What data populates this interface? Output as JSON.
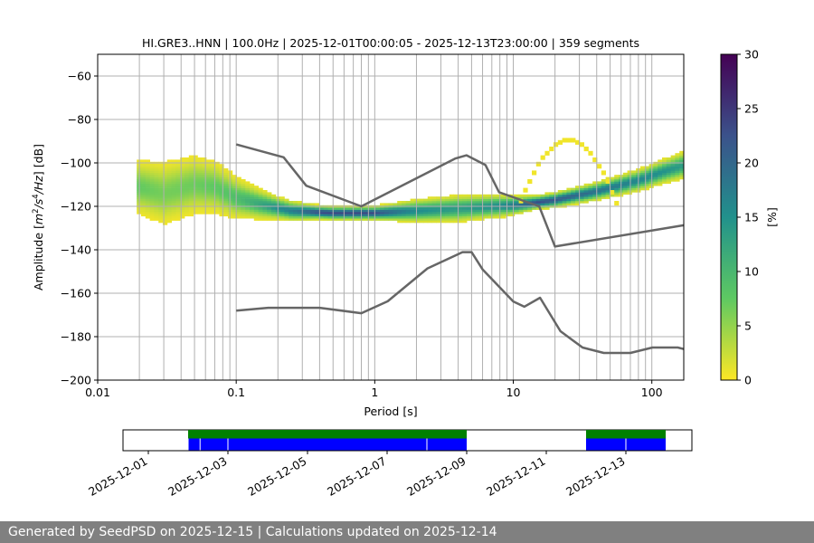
{
  "chart_data": [
    {
      "type": "heatmap",
      "title": "HI.GRE3..HNN | 100.0Hz | 2025-12-01T00:00:05 - 2025-12-13T23:00:00 | 359 segments",
      "xlabel": "Period [s]",
      "ylabel_parts": [
        "Amplitude [",
        "m",
        "2",
        "/",
        "s",
        "4",
        "/",
        "Hz",
        "] [dB]"
      ],
      "x_scale": "log",
      "xlim": [
        0.01,
        170
      ],
      "ylim": [
        -200,
        -50
      ],
      "grid": "vertical period gridlines and horizontal dB gridlines",
      "x_ticks": [
        {
          "value": 0.01,
          "label": "0.01"
        },
        {
          "value": 0.1,
          "label": "0.1"
        },
        {
          "value": 1,
          "label": "1"
        },
        {
          "value": 10,
          "label": "10"
        },
        {
          "value": 100,
          "label": "100"
        }
      ],
      "y_ticks": [
        {
          "value": -60,
          "label": "−60"
        },
        {
          "value": -80,
          "label": "−80"
        },
        {
          "value": -100,
          "label": "−100"
        },
        {
          "value": -120,
          "label": "−120"
        },
        {
          "value": -140,
          "label": "−140"
        },
        {
          "value": -160,
          "label": "−160"
        },
        {
          "value": -180,
          "label": "−180"
        },
        {
          "value": -200,
          "label": "−200"
        }
      ],
      "psd_mode": [
        [
          0.02,
          -111
        ],
        [
          0.03,
          -114
        ],
        [
          0.05,
          -110
        ],
        [
          0.07,
          -111
        ],
        [
          0.1,
          -116
        ],
        [
          0.15,
          -119
        ],
        [
          0.25,
          -122
        ],
        [
          0.5,
          -123
        ],
        [
          1,
          -123
        ],
        [
          2,
          -122
        ],
        [
          4,
          -121
        ],
        [
          7,
          -120
        ],
        [
          10,
          -119.5
        ],
        [
          20,
          -117
        ],
        [
          40,
          -113
        ],
        [
          80,
          -108
        ],
        [
          120,
          -104
        ],
        [
          170,
          -101
        ]
      ],
      "psd_spread": [
        [
          0.02,
          12
        ],
        [
          0.03,
          14
        ],
        [
          0.05,
          13
        ],
        [
          0.08,
          11
        ],
        [
          0.12,
          8
        ],
        [
          0.2,
          5
        ],
        [
          0.4,
          3
        ],
        [
          1,
          3
        ],
        [
          2,
          5
        ],
        [
          4,
          6
        ],
        [
          8,
          5
        ],
        [
          15,
          3
        ],
        [
          40,
          4
        ],
        [
          100,
          5
        ],
        [
          170,
          6
        ]
      ],
      "secondary_peak": {
        "center_period": 25,
        "min_db": -89,
        "description": "faint swell/secondary band"
      },
      "noise_model_high": [
        [
          0.1,
          -91.5
        ],
        [
          0.22,
          -97.4
        ],
        [
          0.32,
          -110.5
        ],
        [
          0.8,
          -120
        ],
        [
          3.8,
          -98
        ],
        [
          4.6,
          -96.5
        ],
        [
          6.3,
          -101
        ],
        [
          7.9,
          -113.5
        ],
        [
          15.4,
          -120
        ],
        [
          20,
          -138.5
        ],
        [
          170,
          -128.7
        ]
      ],
      "noise_model_low": [
        [
          0.1,
          -168
        ],
        [
          0.17,
          -166.7
        ],
        [
          0.4,
          -166.7
        ],
        [
          0.8,
          -169.2
        ],
        [
          1.24,
          -163.7
        ],
        [
          2.4,
          -148.6
        ],
        [
          4.3,
          -141.1
        ],
        [
          5.0,
          -141.1
        ],
        [
          6.0,
          -149
        ],
        [
          10,
          -163.8
        ],
        [
          12,
          -166.2
        ],
        [
          15.6,
          -162.1
        ],
        [
          21.9,
          -177.5
        ],
        [
          31.6,
          -185
        ],
        [
          45,
          -187.5
        ],
        [
          70,
          -187.5
        ],
        [
          101,
          -185
        ],
        [
          154,
          -185
        ],
        [
          170,
          -185.7
        ]
      ],
      "colorbar": {
        "label": "[%]",
        "range": [
          0,
          30
        ],
        "ticks": [
          "0",
          "5",
          "10",
          "15",
          "20",
          "25",
          "30"
        ],
        "colormap": "viridis reversed",
        "colors": [
          "#fde725",
          "#5ec962",
          "#21918c",
          "#3b528b",
          "#440154"
        ]
      },
      "colors": {
        "noise_model": "#666666",
        "grid": "#b0b0b0"
      }
    },
    {
      "type": "timeline",
      "date_ticks": [
        "2025-12-01",
        "2025-12-03",
        "2025-12-05",
        "2025-12-07",
        "2025-12-09",
        "2025-12-11",
        "2025-12-13"
      ],
      "data_availability": [
        [
          "2025-12-01",
          1.0,
          2.32
        ],
        [
          "2025-12-02",
          0.1,
          2.75
        ],
        [
          "2025-12-03",
          0.0,
          4.0
        ],
        [
          "2025-12-07",
          0.0,
          2.0
        ],
        [
          "2025-12-12",
          0.0,
          2.0
        ]
      ],
      "availability_breaks": [
        [
          "2025-12-02",
          0.0
        ],
        [
          "2025-12-02",
          0.3
        ],
        [
          "2025-12-03",
          0.0
        ],
        [
          "2025-12-07",
          1.0
        ],
        [
          "2025-12-08",
          0.0
        ],
        [
          "2025-12-13",
          0.0
        ]
      ],
      "colors": {
        "processed": "#008000",
        "data": "#0000ff"
      }
    }
  ],
  "footer": {
    "text": "Generated by SeedPSD on 2025-12-15 | Calculations updated on 2025-12-14"
  }
}
